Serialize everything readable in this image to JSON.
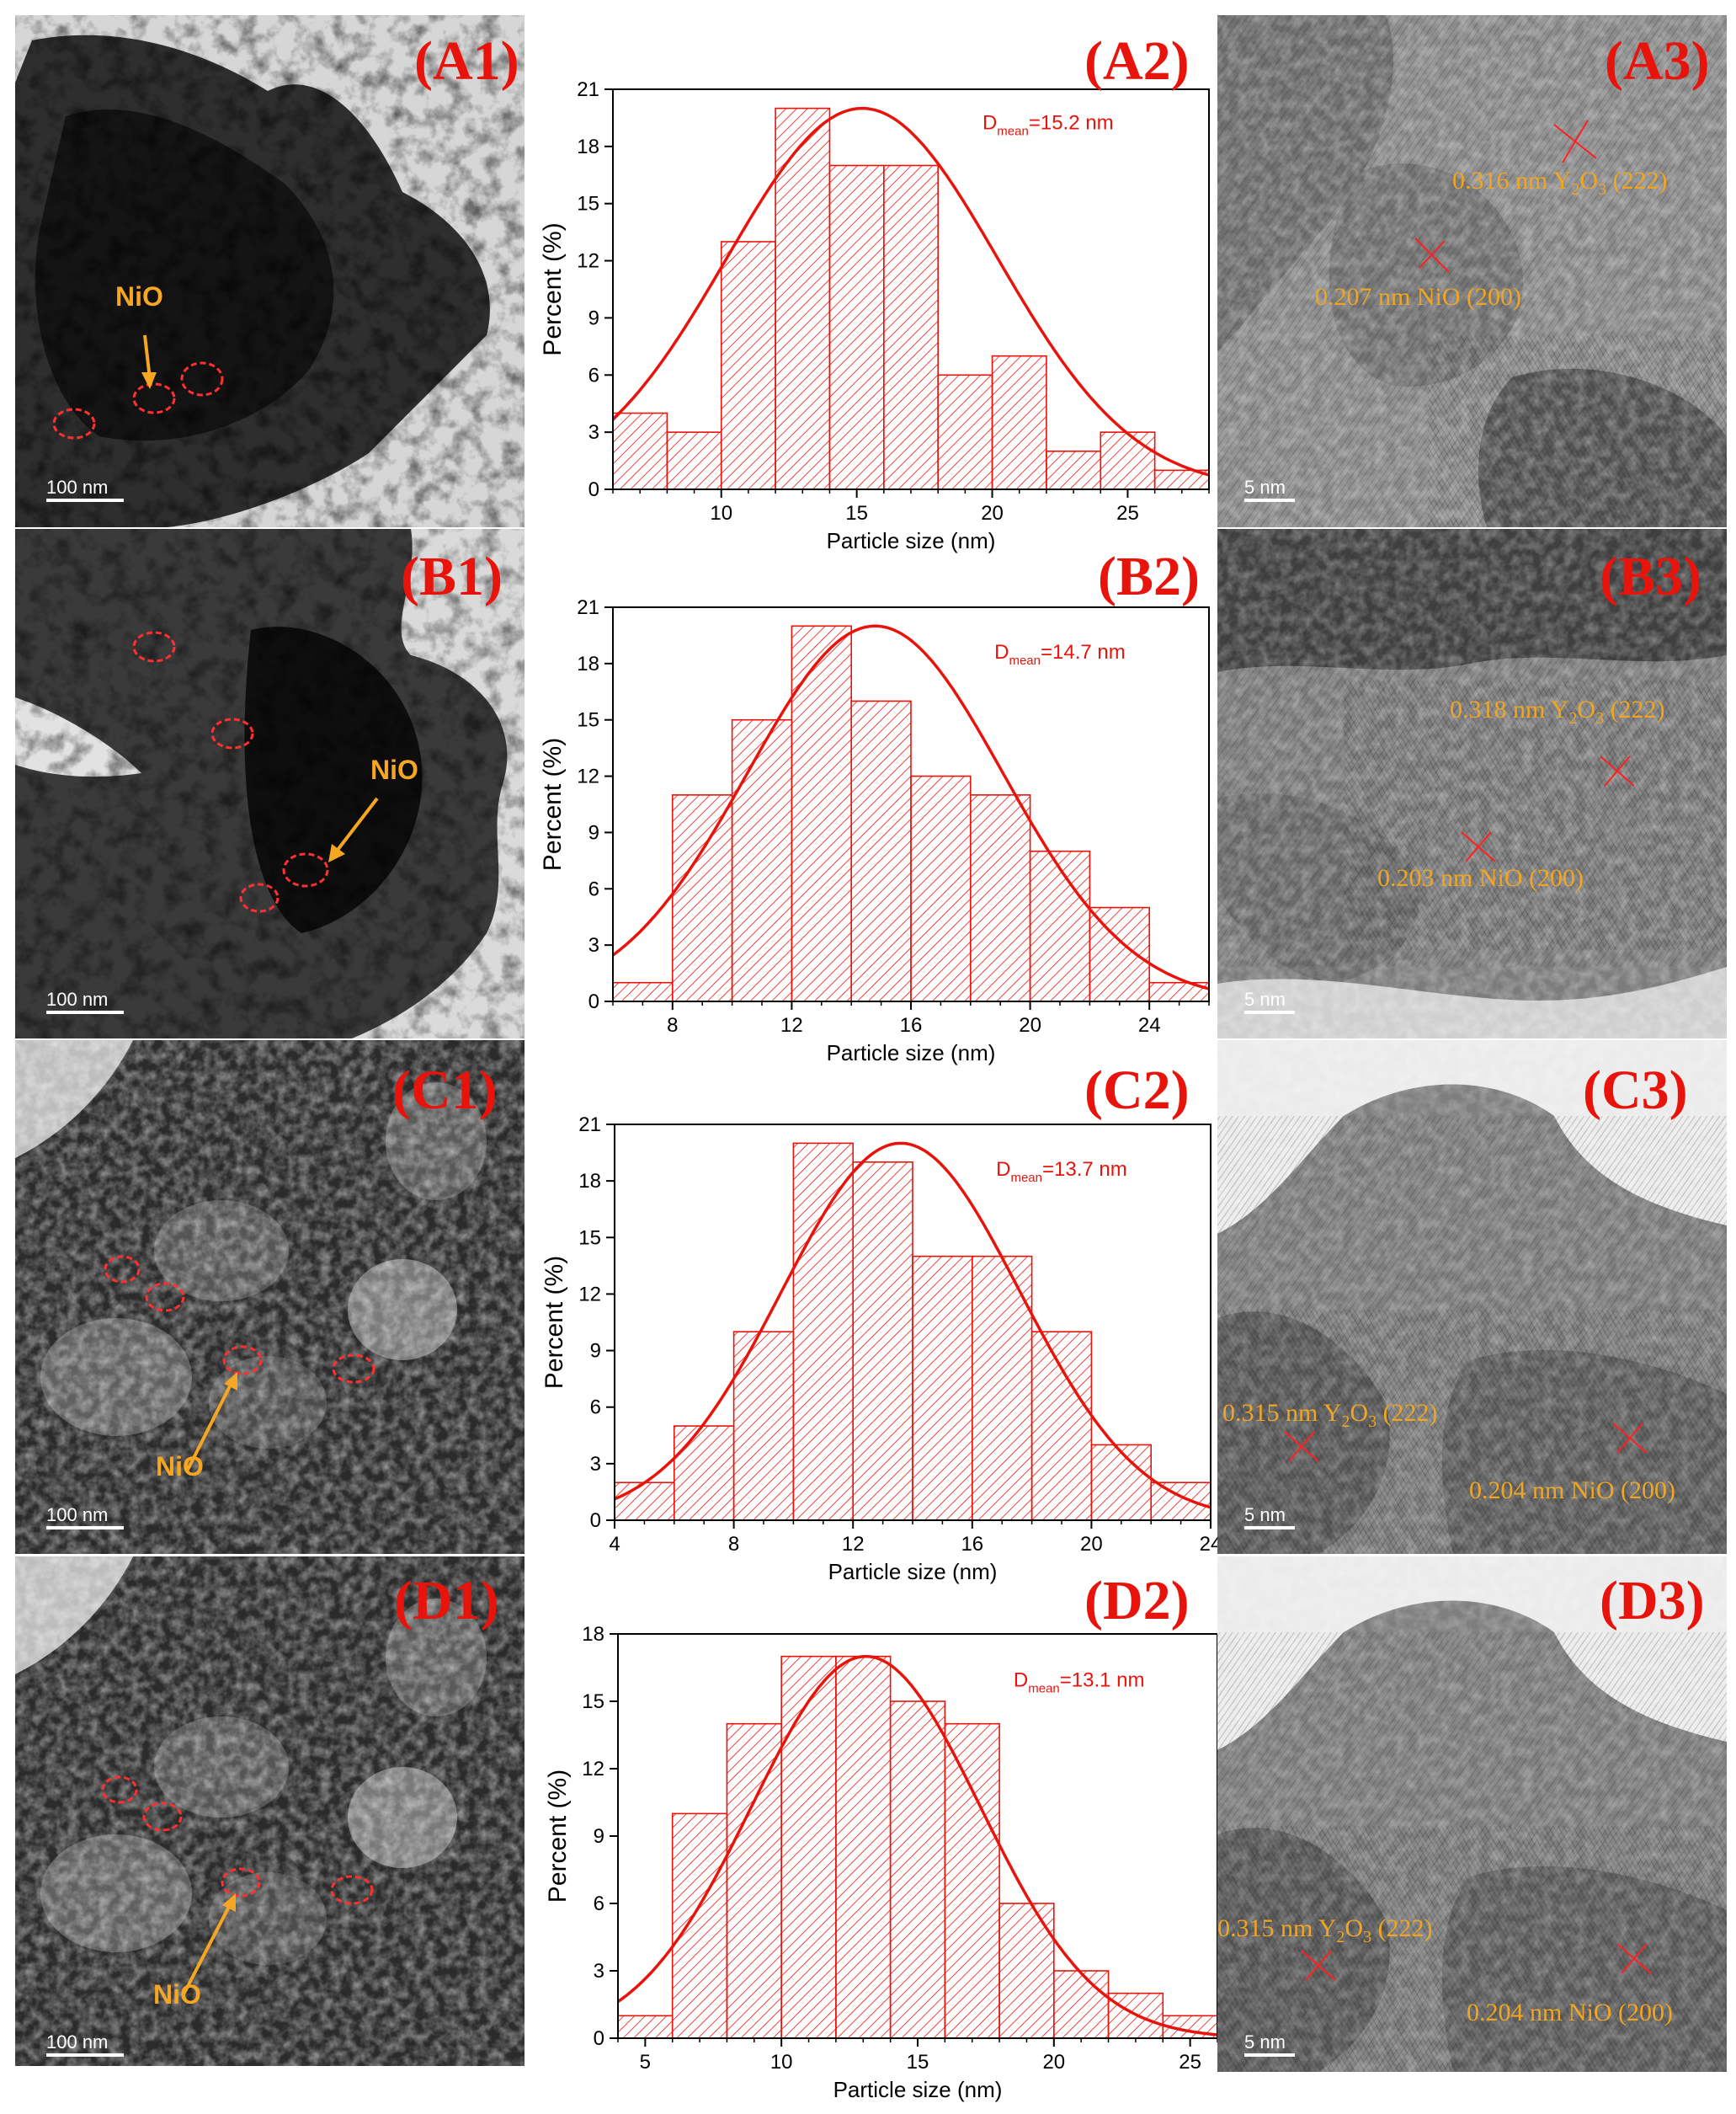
{
  "panels": {
    "A1": "(A1)",
    "A2": "(A2)",
    "A3": "(A3)",
    "B1": "(B1)",
    "B2": "(B2)",
    "B3": "(B3)",
    "C1": "(C1)",
    "C2": "(C2)",
    "C3": "(C3)",
    "D1": "(D1)",
    "D2": "(D2)",
    "D3": "(D3)"
  },
  "scale_bars": {
    "tem": "100 nm",
    "hrtem": "5 nm"
  },
  "nio_label": "NiO",
  "hrtem": {
    "A3": {
      "y2o3": "0.316 nm Y₂O₃ (222)",
      "nio": "0.207 nm NiO (200)"
    },
    "B3": {
      "y2o3": "0.318 nm Y₂O₃ (222)",
      "nio": "0.203 nm NiO (200)"
    },
    "C3": {
      "y2o3": "0.315 nm Y₂O₃ (222)",
      "nio": "0.204 nm NiO (200)"
    },
    "D3": {
      "y2o3": "0.315 nm Y₂O₃ (222)",
      "nio": "0.204 nm NiO (200)"
    }
  },
  "colors": {
    "bar": "#e8140c",
    "label": "#e8140c",
    "annotation": "#f0a623"
  },
  "chart_data": [
    {
      "type": "bar",
      "panel": "A2",
      "xlabel": "Particle size (nm)",
      "ylabel": "Percent (%)",
      "annotation": "D_mean=15.2 nm",
      "xlim": [
        6,
        28
      ],
      "ylim": [
        0,
        21
      ],
      "xticks": [
        10,
        15,
        20,
        25
      ],
      "yticks": [
        0,
        3,
        6,
        9,
        12,
        15,
        18,
        21
      ],
      "bin_edges": [
        6,
        8,
        10,
        12,
        14,
        16,
        18,
        20,
        22,
        24,
        26,
        28
      ],
      "values": [
        4,
        3,
        13,
        20,
        17,
        17,
        6,
        7,
        2,
        3,
        1
      ],
      "fit": {
        "type": "gaussian",
        "mean": 15.2,
        "sigma": 5.0,
        "peak": 20
      }
    },
    {
      "type": "bar",
      "panel": "B2",
      "xlabel": "Particle size (nm)",
      "ylabel": "Percent (%)",
      "annotation": "D_mean=14.7 nm",
      "xlim": [
        6,
        26
      ],
      "ylim": [
        0,
        21
      ],
      "xticks": [
        8,
        12,
        16,
        20,
        24
      ],
      "yticks": [
        0,
        3,
        6,
        9,
        12,
        15,
        18,
        21
      ],
      "bin_edges": [
        6,
        8,
        10,
        12,
        14,
        16,
        18,
        20,
        22,
        24,
        26
      ],
      "values": [
        1,
        11,
        15,
        20,
        16,
        12,
        11,
        8,
        5,
        1
      ],
      "fit": {
        "type": "gaussian",
        "mean": 14.8,
        "sigma": 4.3,
        "peak": 20
      }
    },
    {
      "type": "bar",
      "panel": "C2",
      "xlabel": "Particle size (nm)",
      "ylabel": "Percent (%)",
      "annotation": "D_mean=13.7 nm",
      "xlim": [
        4,
        24
      ],
      "ylim": [
        0,
        21
      ],
      "xticks": [
        4,
        8,
        12,
        16,
        20,
        24
      ],
      "yticks": [
        0,
        3,
        6,
        9,
        12,
        15,
        18,
        21
      ],
      "bin_edges": [
        4,
        6,
        8,
        10,
        12,
        14,
        16,
        18,
        20,
        22,
        24
      ],
      "values": [
        2,
        5,
        10,
        20,
        19,
        14,
        14,
        10,
        4,
        2
      ],
      "fit": {
        "type": "gaussian",
        "mean": 13.6,
        "sigma": 4.0,
        "peak": 20
      }
    },
    {
      "type": "bar",
      "panel": "D2",
      "xlabel": "Particle size (nm)",
      "ylabel": "Percent (%)",
      "annotation": "D_mean=13.1 nm",
      "xlim": [
        4,
        26
      ],
      "ylim": [
        0,
        18
      ],
      "xticks": [
        5,
        10,
        15,
        20,
        25
      ],
      "yticks": [
        0,
        3,
        6,
        9,
        12,
        15,
        18
      ],
      "bin_edges": [
        4,
        6,
        8,
        10,
        12,
        14,
        16,
        18,
        20,
        22,
        24,
        26
      ],
      "values": [
        1,
        10,
        14,
        17,
        17,
        15,
        14,
        6,
        3,
        2,
        1
      ],
      "fit": {
        "type": "gaussian",
        "mean": 13.1,
        "sigma": 4.2,
        "peak": 17
      }
    }
  ]
}
